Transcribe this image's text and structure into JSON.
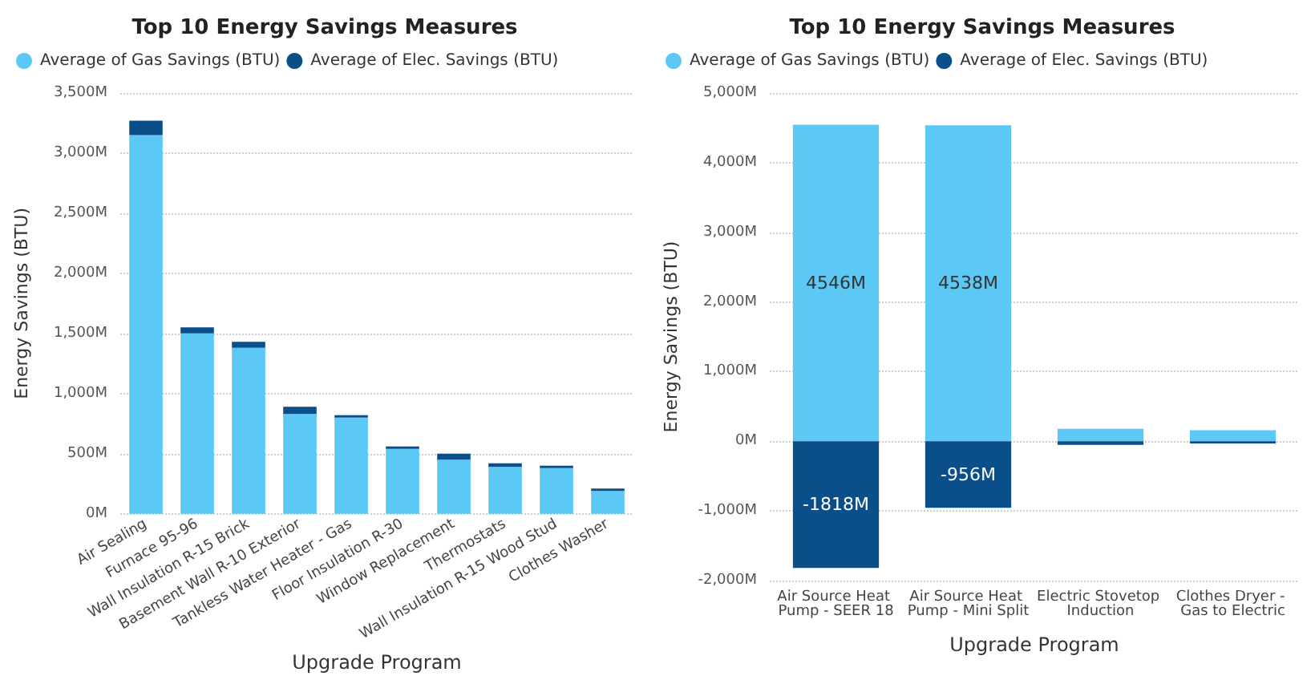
{
  "chart_data": [
    {
      "type": "bar",
      "title": "Top 10 Energy Savings Measures",
      "xlabel": "Upgrade Program",
      "ylabel": "Energy Savings (BTU)",
      "stacked": true,
      "legend": "top left",
      "grid": "y",
      "categories": [
        "Air Sealing",
        "Furnace 95-96",
        "Wall Insulation R-15 Brick",
        "Basement Wall R-10 Exterior",
        "Tankless Water Heater - Gas",
        "Floor Insulation R-30",
        "Window Replacement",
        "Thermostats",
        "Wall Insulation R-15 Wood Stud",
        "Clothes Washer"
      ],
      "series": [
        {
          "name": "Average of Gas Savings (BTU)",
          "color": "#5bc8f5",
          "values": [
            3150,
            1500,
            1380,
            830,
            800,
            540,
            450,
            390,
            380,
            190
          ]
        },
        {
          "name": "Average of Elec. Savings (BTU)",
          "color": "#0a4f8a",
          "values": [
            120,
            50,
            50,
            60,
            20,
            20,
            50,
            30,
            20,
            20
          ]
        }
      ],
      "ylim": [
        0,
        3500
      ],
      "yticks": [
        {
          "value": 0,
          "label": "0M"
        },
        {
          "value": 500,
          "label": "500M"
        },
        {
          "value": 1000,
          "label": "1,000M"
        },
        {
          "value": 1500,
          "label": "1,500M"
        },
        {
          "value": 2000,
          "label": "2,000M"
        },
        {
          "value": 2500,
          "label": "2,500M"
        },
        {
          "value": 3000,
          "label": "3,000M"
        },
        {
          "value": 3500,
          "label": "3,500M"
        }
      ]
    },
    {
      "type": "bar",
      "title": "Top 10 Energy Savings Measures",
      "xlabel": "Upgrade Program",
      "ylabel": "Energy Savings (BTU)",
      "stacked": true,
      "legend": "top left",
      "grid": "y",
      "categories": [
        "Air Source Heat Pump - SEER 18",
        "Air Source Heat Pump - Mini Split",
        "Electric Stovetop Induction",
        "Clothes Dryer - Gas to Electric"
      ],
      "series": [
        {
          "name": "Average of Gas Savings (BTU)",
          "color": "#5bc8f5",
          "values": [
            4546,
            4538,
            180,
            160
          ],
          "value_labels": [
            "4546M",
            "4538M",
            null,
            null
          ]
        },
        {
          "name": "Average of Elec. Savings (BTU)",
          "color": "#0a4f8a",
          "values": [
            -1818,
            -956,
            -50,
            -30
          ],
          "value_labels": [
            "-1818M",
            "-956M",
            null,
            null
          ]
        }
      ],
      "ylim": [
        -2000,
        5000
      ],
      "yticks": [
        {
          "value": -2000,
          "label": "-2,000M"
        },
        {
          "value": -1000,
          "label": "-1,000M"
        },
        {
          "value": 0,
          "label": "0M"
        },
        {
          "value": 1000,
          "label": "1,000M"
        },
        {
          "value": 2000,
          "label": "2,000M"
        },
        {
          "value": 3000,
          "label": "3,000M"
        },
        {
          "value": 4000,
          "label": "4,000M"
        },
        {
          "value": 5000,
          "label": "5,000M"
        }
      ]
    }
  ]
}
